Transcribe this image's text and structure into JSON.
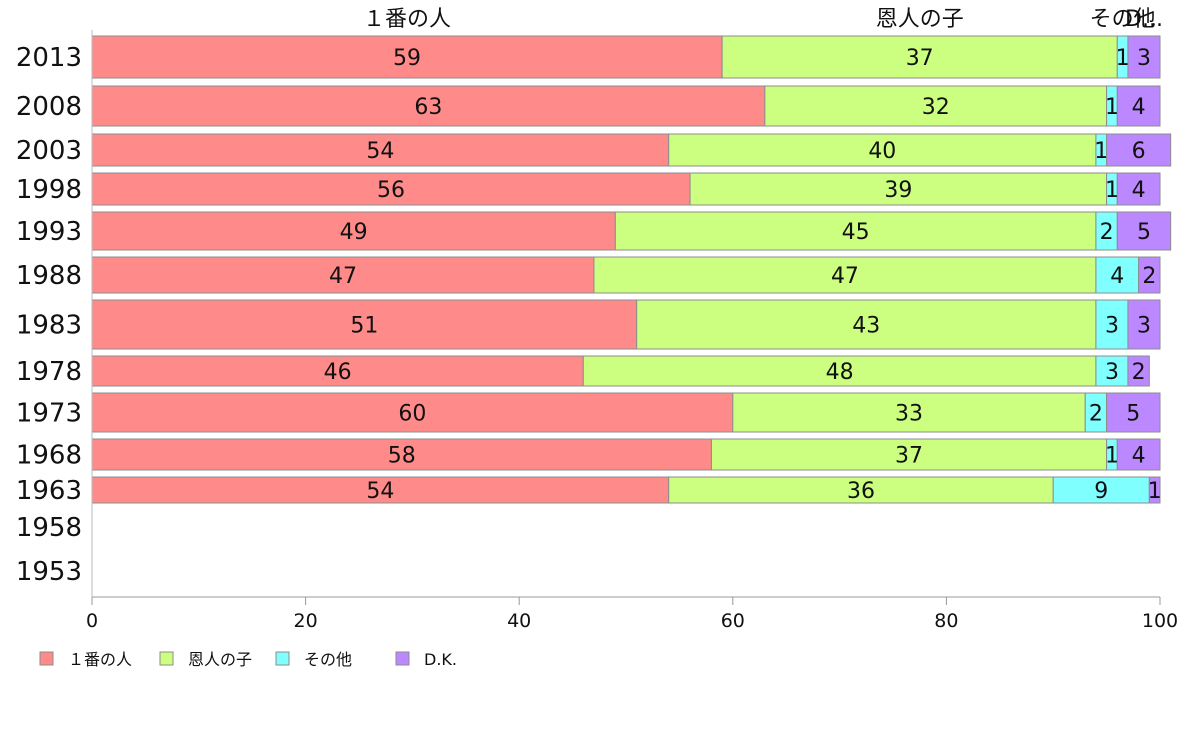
{
  "chart_data": {
    "type": "bar",
    "orientation": "horizontal",
    "stacked": true,
    "title": "",
    "xlabel": "",
    "ylabel": "",
    "xlim": [
      0,
      100
    ],
    "x_ticks": [
      "0",
      "20",
      "40",
      "60",
      "80",
      "100"
    ],
    "legend_position": "bottom-left",
    "grid": false,
    "top_labels": [
      "１番の人",
      "恩人の子",
      "その他",
      "D..."
    ],
    "categories": [
      "2013",
      "2008",
      "2003",
      "1998",
      "1993",
      "1988",
      "1983",
      "1978",
      "1973",
      "1968",
      "1963",
      "1958",
      "1953"
    ],
    "series": [
      {
        "name": "１番の人",
        "color": "#ff8a8a",
        "values": [
          59,
          63,
          54,
          56,
          49,
          47,
          51,
          46,
          60,
          58,
          54,
          null,
          null
        ],
        "labels": [
          "59",
          "63",
          "54",
          "56",
          "49",
          "47",
          "51",
          "46",
          "60",
          "58",
          "54",
          "",
          ""
        ]
      },
      {
        "name": "恩人の子",
        "color": "#ccff80",
        "values": [
          37,
          32,
          40,
          39,
          45,
          47,
          43,
          48,
          33,
          37,
          36,
          null,
          null
        ],
        "labels": [
          "37",
          "32",
          "40",
          "39",
          "45",
          "47",
          "43",
          "48",
          "33",
          "37",
          "36",
          "",
          ""
        ]
      },
      {
        "name": "その他",
        "color": "#80ffff",
        "values": [
          1,
          1,
          1,
          1,
          2,
          4,
          3,
          3,
          2,
          1,
          9,
          null,
          null
        ],
        "labels": [
          "1",
          "1",
          "1",
          "1",
          "2",
          "4",
          "3",
          "3",
          "2",
          "1",
          "9",
          "",
          ""
        ]
      },
      {
        "name": "D.K.",
        "color": "#bb88ff",
        "values": [
          3,
          4,
          6,
          4,
          5,
          2,
          3,
          2,
          5,
          4,
          1,
          null,
          null
        ],
        "labels": [
          "3",
          "4",
          "6",
          "4",
          "5",
          "2",
          "3",
          "2",
          "5",
          "4",
          "1",
          "",
          ""
        ]
      }
    ]
  }
}
